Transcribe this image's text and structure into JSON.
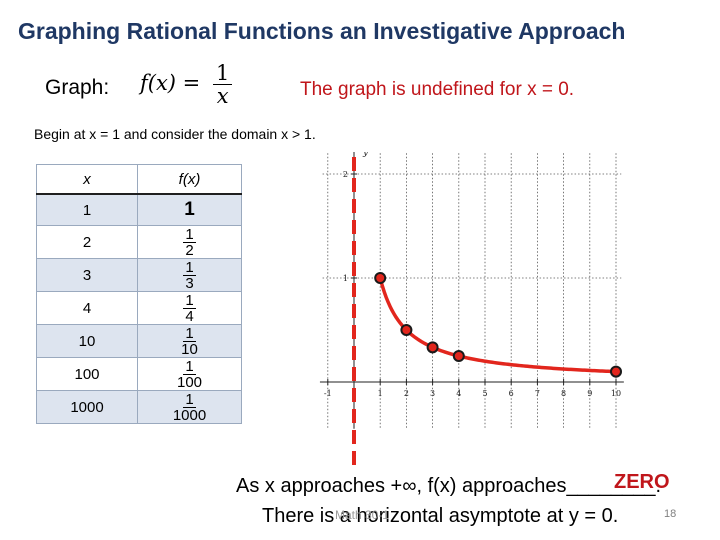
{
  "slide": {
    "title": "Graphing Rational Functions an Investigative Approach",
    "graph_label": "Graph:",
    "formula": {
      "lhs": "f(x) =",
      "numerator": "1",
      "denominator": "x"
    },
    "undefined_note": "The graph is undefined for x = 0.",
    "domain_note": "Begin at x = 1 and consider the domain x > 1.",
    "conclusion_line1": "As x approaches +∞, f(x) approaches________.",
    "answer": "ZERO",
    "conclusion_line2": "There is a horizontal asymptote at y = 0.",
    "watermark": "Math 30-1",
    "slide_number": "18"
  },
  "table": {
    "headers": {
      "x": "x",
      "fx": "f(x)"
    },
    "rows": [
      {
        "x": "1",
        "fx_whole": "1"
      },
      {
        "x": "2",
        "fx_num": "1",
        "fx_den": "2"
      },
      {
        "x": "3",
        "fx_num": "1",
        "fx_den": "3"
      },
      {
        "x": "4",
        "fx_num": "1",
        "fx_den": "4"
      },
      {
        "x": "10",
        "fx_num": "1",
        "fx_den": "10"
      },
      {
        "x": "100",
        "fx_num": "1",
        "fx_den": "100"
      },
      {
        "x": "1000",
        "fx_num": "1",
        "fx_den": "1000"
      }
    ]
  },
  "chart_data": {
    "type": "scatter",
    "x_ticks": [
      "-1",
      "1",
      "2",
      "3",
      "4",
      "5",
      "6",
      "7",
      "8",
      "9",
      "10"
    ],
    "y_ticks": [
      "1",
      "2"
    ],
    "ylabel": "y",
    "xlim": [
      -1,
      10
    ],
    "ylim": [
      0,
      2
    ],
    "grid": true,
    "points": [
      {
        "x": 1,
        "y": 1
      },
      {
        "x": 2,
        "y": 0.5
      },
      {
        "x": 3,
        "y": 0.3333
      },
      {
        "x": 4,
        "y": 0.25
      },
      {
        "x": 10,
        "y": 0.1
      }
    ],
    "curve": "y = 1/x",
    "asymptote_x": 0,
    "colors": {
      "curve": "#e2261d",
      "asymptote": "#e2261d",
      "point_fill": "#e2261d",
      "point_stroke": "#1a1a1a"
    }
  }
}
